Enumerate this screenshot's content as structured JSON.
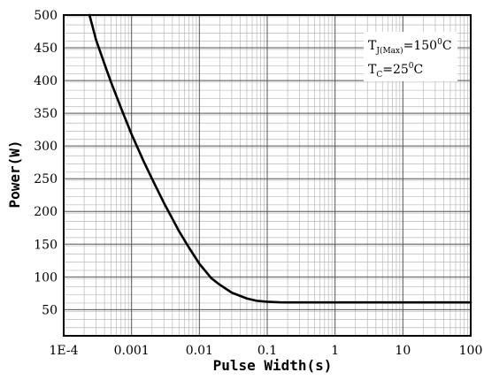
{
  "chart_data": {
    "type": "line",
    "x_scale": "log",
    "xlim": [
      0.0001,
      100
    ],
    "ylim": [
      10,
      500
    ],
    "xlabel": "Pulse Width(s)",
    "ylabel": "Power(W)",
    "grid": true,
    "x_ticks": [
      {
        "value": 0.0001,
        "label": "1E-4"
      },
      {
        "value": 0.001,
        "label": "0.001"
      },
      {
        "value": 0.01,
        "label": "0.01"
      },
      {
        "value": 0.1,
        "label": "0.1"
      },
      {
        "value": 1,
        "label": "1"
      },
      {
        "value": 10,
        "label": "10"
      },
      {
        "value": 100,
        "label": "100"
      }
    ],
    "y_ticks": [
      {
        "value": 50,
        "label": "50"
      },
      {
        "value": 100,
        "label": "100"
      },
      {
        "value": 150,
        "label": "150"
      },
      {
        "value": 200,
        "label": "200"
      },
      {
        "value": 250,
        "label": "250"
      },
      {
        "value": 300,
        "label": "300"
      },
      {
        "value": 350,
        "label": "350"
      },
      {
        "value": 400,
        "label": "400"
      },
      {
        "value": 450,
        "label": "450"
      },
      {
        "value": 500,
        "label": "500"
      }
    ],
    "y_minor_step": 12.5,
    "series": [
      {
        "x": [
          0.00024,
          0.0003,
          0.0004,
          0.0005,
          0.0007,
          0.001,
          0.0015,
          0.002,
          0.003,
          0.005,
          0.007,
          0.01,
          0.015,
          0.02,
          0.03,
          0.05,
          0.07,
          0.1,
          0.15,
          0.2,
          0.3,
          0.5,
          1,
          10,
          100
        ],
        "y": [
          500,
          462,
          425,
          397,
          358,
          318,
          277,
          250,
          213,
          170,
          145,
          120,
          98,
          88,
          76,
          67,
          63.5,
          62,
          61.2,
          61,
          61,
          61,
          61,
          61,
          61
        ]
      }
    ],
    "annotation": {
      "line1": {
        "main": "T",
        "sub": "J(Max)",
        "rest": "=150",
        "sup": "0",
        "unit": "C"
      },
      "line2": {
        "main": "T",
        "sub": "C",
        "rest": "=25",
        "sup": "0",
        "unit": "C"
      }
    }
  }
}
